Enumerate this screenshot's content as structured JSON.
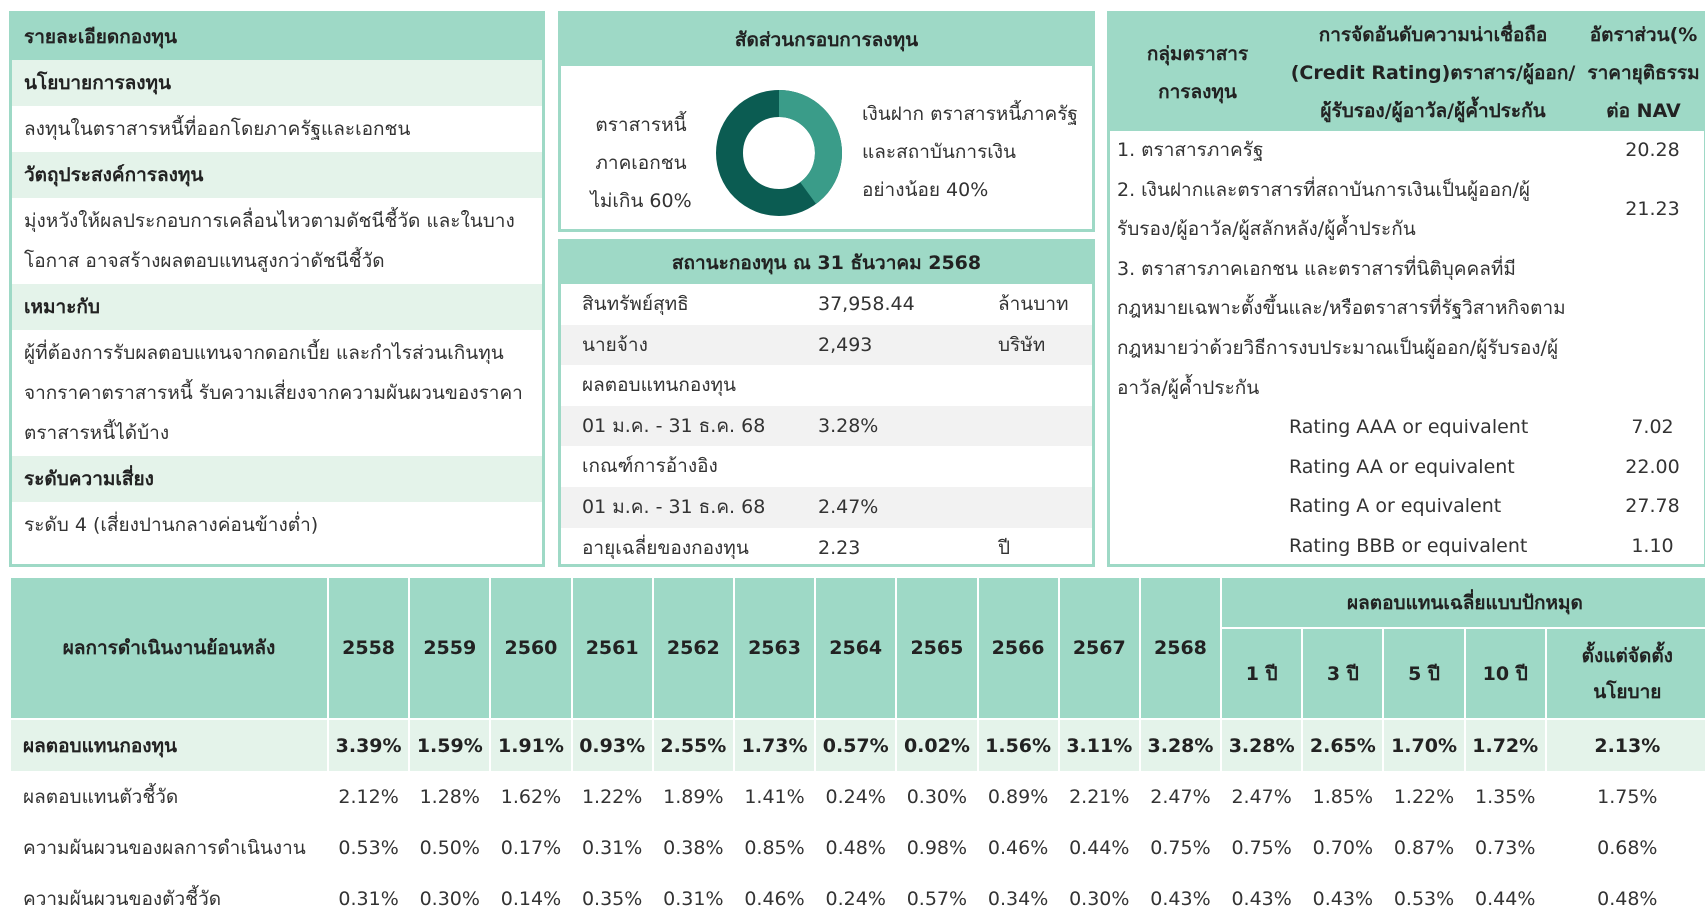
{
  "fund_details": {
    "title": "รายละเอียดกองทุน",
    "sections": [
      {
        "heading": "นโยบายการลงทุน",
        "lines": [
          "ลงทุนในตราสารหนี้ที่ออกโดยภาครัฐและเอกชน"
        ]
      },
      {
        "heading": "วัตถุประสงค์การลงทุน",
        "lines": [
          "มุ่งหวังให้ผลประกอบการเคลื่อนไหวตามดัชนีชี้วัด และในบาง",
          "โอกาส อาจสร้างผลตอบแทนสูงกว่าดัชนีชี้วัด"
        ]
      },
      {
        "heading": "เหมาะกับ",
        "lines": [
          "ผู้ที่ต้องการรับผลตอบแทนจากดอกเบี้ย และกำไรส่วนเกินทุน",
          "จากราคาตราสารหนี้ รับความเสี่ยงจากความผันผวนของราคา",
          "ตราสารหนี้ได้บ้าง"
        ]
      },
      {
        "heading": "ระดับความเสี่ยง",
        "lines": [
          "ระดับ 4 (เสี่ยงปานกลางค่อนข้างต่ำ)"
        ]
      }
    ]
  },
  "allocation": {
    "title": "สัดส่วนกรอบการลงทุน",
    "left_lines": [
      "ตราสารหนี้",
      "ภาคเอกชน",
      "ไม่เกิน 60%"
    ],
    "right_lines": [
      "เงินฝาก ตราสารหนี้ภาครัฐ",
      "และสถาบันการเงิน",
      "อย่างน้อย 40%"
    ]
  },
  "status": {
    "title": "สถานะกองทุน ณ 31 ธันวาคม 2568",
    "rows": [
      [
        "สินทรัพย์สุทธิ",
        "37,958.44",
        "ล้านบาท"
      ],
      [
        "นายจ้าง",
        "2,493",
        "บริษัท"
      ],
      [
        "ผลตอบแทนกองทุน"
      ],
      [
        "01 ม.ค. - 31 ธ.ค. 68",
        "3.28%"
      ],
      [
        "เกณฑ์การอ้างอิง"
      ],
      [
        "01 ม.ค. - 31 ธ.ค. 68",
        "2.47%"
      ],
      [
        "อายุเฉลี่ยของกองทุน",
        "2.23",
        "ปี"
      ]
    ]
  },
  "credit": {
    "headers": [
      [
        "กลุ่มตราสาร",
        "การลงทุน"
      ],
      [
        "การจัดอันดับความน่าเชื่อถือ",
        "(Credit Rating)ตราสาร/ผู้ออก/",
        "ผู้รับรอง/ผู้อาวัล/ผู้ค้ำประกัน"
      ],
      [
        "อัตราส่วน(%",
        "ราคายุติธรรม",
        "ต่อ NAV"
      ]
    ],
    "rows": [
      {
        "lines": [
          "1. ตราสารภาครัฐ"
        ],
        "value": "20.28"
      },
      {
        "lines": [
          "2. เงินฝากและตราสารที่สถาบันการเงินเป็นผู้ออก/ผู้",
          "รับรอง/ผู้อาวัล/ผู้สลักหลัง/ผู้ค้ำประกัน"
        ],
        "value": "21.23"
      },
      {
        "lines": [
          "3. ตราสารภาคเอกชน และตราสารที่นิติบุคคลที่มี",
          "กฎหมายเฉพาะตั้งขึ้นและ/หรือตราสารที่รัฐวิสาหกิจตาม",
          "กฎหมายว่าด้วยวิธีการงบประมาณเป็นผู้ออก/ผู้รับรอง/ผู้",
          "อาวัล/ผู้ค้ำประกัน"
        ]
      }
    ],
    "ratings": [
      {
        "label": "Rating AAA or equivalent",
        "value": "7.02"
      },
      {
        "label": "Rating AA or equivalent",
        "value": "22.00"
      },
      {
        "label": "Rating A or equivalent",
        "value": "27.78"
      },
      {
        "label": "Rating BBB or equivalent",
        "value": "1.10"
      }
    ]
  },
  "performance": {
    "header": "ผลการดำเนินงานย้อนหลัง",
    "years": [
      "2558",
      "2559",
      "2560",
      "2561",
      "2562",
      "2563",
      "2564",
      "2565",
      "2566",
      "2567",
      "2568"
    ],
    "group_header": "ผลตอบแทนเฉลี่ยแบบปักหมุด",
    "periods": [
      [
        "1 ปี"
      ],
      [
        "3 ปี"
      ],
      [
        "5 ปี"
      ],
      [
        "10 ปี"
      ],
      [
        "ตั้งแต่จัดตั้ง",
        "นโยบาย"
      ]
    ],
    "rows": [
      {
        "label": "ผลตอบแทนกองทุน",
        "values": [
          "3.39%",
          "1.59%",
          "1.91%",
          "0.93%",
          "2.55%",
          "1.73%",
          "0.57%",
          "0.02%",
          "1.56%",
          "3.11%",
          "3.28%",
          "3.28%",
          "2.65%",
          "1.70%",
          "1.72%",
          "2.13%"
        ]
      },
      {
        "label": "ผลตอบแทนตัวชี้วัด",
        "values": [
          "2.12%",
          "1.28%",
          "1.62%",
          "1.22%",
          "1.89%",
          "1.41%",
          "0.24%",
          "0.30%",
          "0.89%",
          "2.21%",
          "2.47%",
          "2.47%",
          "1.85%",
          "1.22%",
          "1.35%",
          "1.75%"
        ]
      },
      {
        "label": "ความผันผวนของผลการดำเนินงาน",
        "values": [
          "0.53%",
          "0.50%",
          "0.17%",
          "0.31%",
          "0.38%",
          "0.85%",
          "0.48%",
          "0.98%",
          "0.46%",
          "0.44%",
          "0.75%",
          "0.75%",
          "0.70%",
          "0.87%",
          "0.73%",
          "0.68%"
        ]
      },
      {
        "label": "ความผันผวนของตัวชี้วัด",
        "values": [
          "0.31%",
          "0.30%",
          "0.14%",
          "0.35%",
          "0.31%",
          "0.46%",
          "0.24%",
          "0.57%",
          "0.34%",
          "0.30%",
          "0.43%",
          "0.43%",
          "0.43%",
          "0.53%",
          "0.44%",
          "0.48%"
        ]
      }
    ]
  }
}
